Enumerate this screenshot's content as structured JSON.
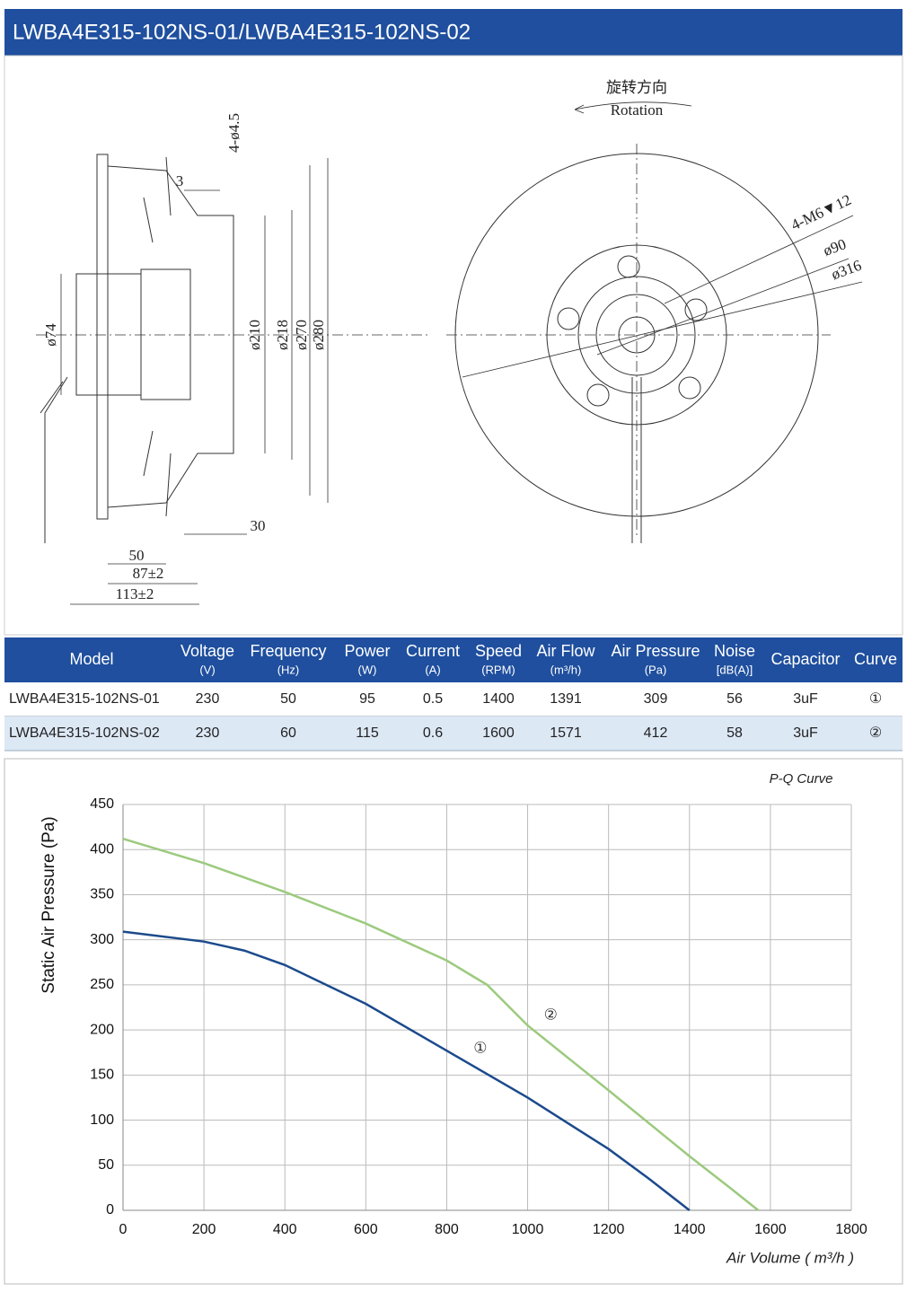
{
  "header": {
    "title": "LWBA4E315-102NS-01/LWBA4E315-102NS-02"
  },
  "drawing": {
    "labels": [
      "4-ø4.5",
      "3",
      "ø74",
      "ø210",
      "ø218",
      "ø270",
      "ø280",
      "30",
      "50",
      "87±2",
      "113±2",
      "旋转方向",
      "Rotation",
      "4-M6▼12",
      "ø90",
      "ø316"
    ]
  },
  "table": {
    "columns": [
      {
        "name": "Model"
      },
      {
        "name": "Voltage",
        "unit": "(V)"
      },
      {
        "name": "Frequency",
        "unit": "(Hz)"
      },
      {
        "name": "Power",
        "unit": "(W)"
      },
      {
        "name": "Current",
        "unit": "(A)"
      },
      {
        "name": "Speed",
        "unit": "(RPM)"
      },
      {
        "name": "Air Flow",
        "unit": "(m³/h)"
      },
      {
        "name": "Air Pressure",
        "unit": "(Pa)"
      },
      {
        "name": "Noise",
        "unit": "[dB(A)]"
      },
      {
        "name": "Capacitor"
      },
      {
        "name": "Curve"
      }
    ],
    "rows": [
      [
        "LWBA4E315-102NS-01",
        230,
        50,
        95,
        0.5,
        1400,
        1391,
        309,
        56,
        "3uF",
        "①"
      ],
      [
        "LWBA4E315-102NS-02",
        230,
        60,
        115,
        0.6,
        1600,
        1571,
        412,
        58,
        "3uF",
        "②"
      ]
    ]
  },
  "chart_data": {
    "type": "line",
    "title": "P-Q Curve",
    "x_label": "Air Volume ( m³/h )",
    "y_label": "Static Air Pressure  (Pa)",
    "xlim": [
      0,
      1800
    ],
    "ylim": [
      0,
      450
    ],
    "xticks": [
      0,
      200,
      400,
      600,
      800,
      1000,
      1200,
      1400,
      1600,
      1800
    ],
    "yticks": [
      0,
      50,
      100,
      150,
      200,
      250,
      300,
      350,
      400,
      450
    ],
    "grid": true,
    "series": [
      {
        "color": "#1b4a8c",
        "x": [
          0,
          200,
          300,
          400,
          600,
          800,
          1000,
          1200,
          1300,
          1400
        ],
        "values": [
          309,
          298,
          288,
          272,
          229,
          177,
          125,
          68,
          35,
          0
        ]
      },
      {
        "color": "#9cca7e",
        "x": [
          0,
          200,
          400,
          600,
          800,
          900,
          1000,
          1200,
          1400,
          1500,
          1570
        ],
        "values": [
          412,
          385,
          353,
          318,
          277,
          250,
          205,
          133,
          60,
          25,
          0
        ]
      }
    ],
    "annotations": [
      {
        "text": "①",
        "x": 883,
        "y": 179
      },
      {
        "text": "②",
        "x": 1057,
        "y": 216
      }
    ]
  }
}
